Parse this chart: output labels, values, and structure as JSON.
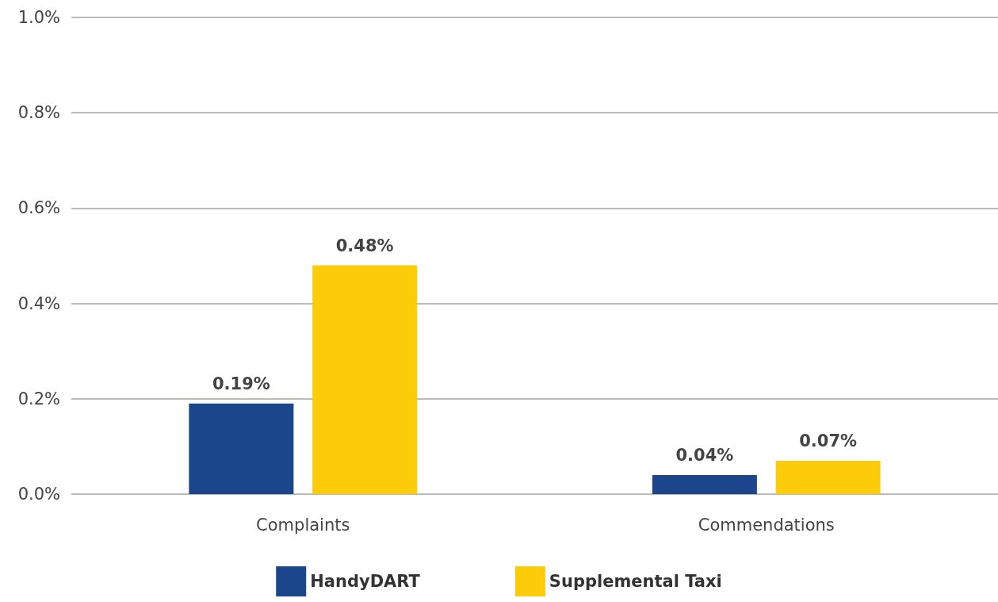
{
  "chart_data": {
    "type": "bar",
    "categories": [
      "Complaints",
      "Commendations"
    ],
    "series": [
      {
        "name": "HandyDART",
        "color": "#1c468b",
        "values": [
          0.19,
          0.04
        ],
        "value_labels": [
          "0.19%",
          "0.04%"
        ]
      },
      {
        "name": "Supplemental Taxi",
        "color": "#fccc0a",
        "values": [
          0.48,
          0.07
        ],
        "value_labels": [
          "0.48%",
          "0.07%"
        ]
      }
    ],
    "ylim": [
      0,
      1
    ],
    "yticks": [
      {
        "value": 0,
        "label": "0.0%"
      },
      {
        "value": 0.2,
        "label": "0.2%"
      },
      {
        "value": 0.4,
        "label": "0.4%"
      },
      {
        "value": 0.6,
        "label": "0.6%"
      },
      {
        "value": 0.8,
        "label": "0.8%"
      },
      {
        "value": 1,
        "label": "1.0%"
      }
    ],
    "grid": "y",
    "legend": "bottom"
  }
}
